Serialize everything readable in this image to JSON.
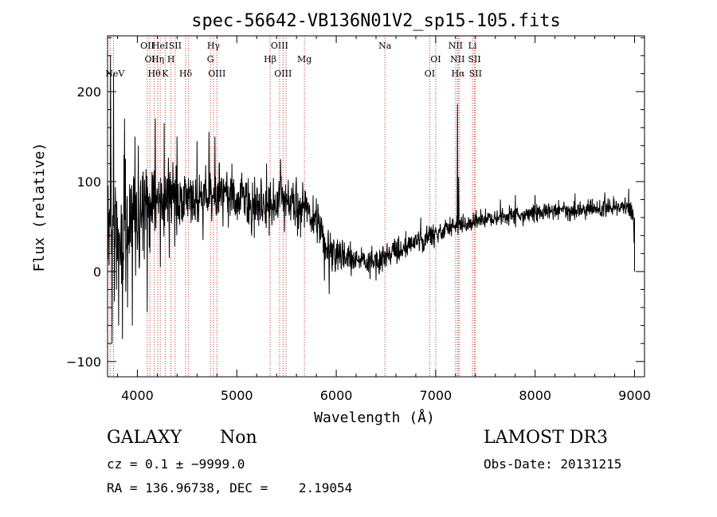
{
  "chart_data": {
    "type": "line",
    "title": "spec-56642-VB136N01V2_sp15-105.fits",
    "xlabel": "Wavelength (Å)",
    "ylabel": "Flux (relative)",
    "xlim": [
      3700,
      9100
    ],
    "ylim": [
      -117,
      262
    ],
    "xticks": [
      {
        "v": 4000,
        "label": "4000"
      },
      {
        "v": 5000,
        "label": "5000"
      },
      {
        "v": 6000,
        "label": "6000"
      },
      {
        "v": 7000,
        "label": "7000"
      },
      {
        "v": 8000,
        "label": "8000"
      },
      {
        "v": 9000,
        "label": "9000"
      }
    ],
    "yticks": [
      {
        "v": -100,
        "label": "−100"
      },
      {
        "v": 0,
        "label": "0"
      },
      {
        "v": 100,
        "label": "100"
      },
      {
        "v": 200,
        "label": "200"
      }
    ],
    "grid": false,
    "line_color": "#000000",
    "marker_color": "#c0392b",
    "spectrum_profile": [
      [
        3700,
        60
      ],
      [
        3760,
        55
      ],
      [
        3850,
        40
      ],
      [
        3950,
        55
      ],
      [
        4100,
        70
      ],
      [
        4300,
        80
      ],
      [
        4500,
        85
      ],
      [
        4700,
        90
      ],
      [
        4900,
        85
      ],
      [
        5100,
        75
      ],
      [
        5300,
        70
      ],
      [
        5500,
        80
      ],
      [
        5700,
        65
      ],
      [
        5800,
        55
      ],
      [
        5900,
        30
      ],
      [
        6000,
        20
      ],
      [
        6150,
        15
      ],
      [
        6300,
        10
      ],
      [
        6450,
        15
      ],
      [
        6600,
        20
      ],
      [
        6800,
        35
      ],
      [
        7000,
        42
      ],
      [
        7150,
        50
      ],
      [
        7400,
        55
      ],
      [
        7700,
        62
      ],
      [
        8000,
        65
      ],
      [
        8300,
        68
      ],
      [
        8600,
        70
      ],
      [
        8900,
        72
      ],
      [
        8990,
        65
      ],
      [
        9000,
        0
      ]
    ],
    "spectrum_spikes": [
      [
        3730,
        240
      ],
      [
        3745,
        -80
      ],
      [
        3760,
        220
      ],
      [
        3790,
        -20
      ],
      [
        3810,
        -60
      ],
      [
        3850,
        -75
      ],
      [
        3870,
        170
      ],
      [
        3900,
        -40
      ],
      [
        3950,
        -60
      ],
      [
        3975,
        150
      ],
      [
        4010,
        140
      ],
      [
        4035,
        60
      ],
      [
        4100,
        -45
      ],
      [
        4180,
        170
      ],
      [
        4230,
        5
      ],
      [
        4270,
        165
      ],
      [
        4320,
        15
      ],
      [
        4400,
        150
      ],
      [
        4600,
        145
      ],
      [
        4660,
        35
      ],
      [
        4720,
        155
      ],
      [
        4780,
        150
      ],
      [
        4860,
        50
      ],
      [
        4950,
        120
      ],
      [
        5050,
        110
      ],
      [
        5150,
        40
      ],
      [
        5300,
        120
      ],
      [
        5440,
        125
      ],
      [
        5600,
        105
      ],
      [
        5850,
        60
      ],
      [
        5880,
        -10
      ],
      [
        5930,
        -25
      ],
      [
        6150,
        -5
      ],
      [
        6400,
        -10
      ],
      [
        6700,
        45
      ],
      [
        6850,
        60
      ],
      [
        7218,
        186
      ],
      [
        7230,
        105
      ],
      [
        7500,
        70
      ],
      [
        7650,
        80
      ],
      [
        7800,
        85
      ],
      [
        8000,
        85
      ],
      [
        8400,
        87
      ],
      [
        8700,
        88
      ],
      [
        8940,
        92
      ]
    ],
    "lines": [
      {
        "x": 3726,
        "label": "NeV",
        "row": 2,
        "ha": "left"
      },
      {
        "x": 3760,
        "label": "",
        "row": 0,
        "ha": "center"
      },
      {
        "x": 4100,
        "label": "OII",
        "row": 0,
        "ha": "center"
      },
      {
        "x": 4126,
        "label": "OI",
        "row": 1,
        "ha": "center"
      },
      {
        "x": 4170,
        "label": "Hθ",
        "row": 2,
        "ha": "center"
      },
      {
        "x": 4205,
        "label": "Hη",
        "row": 1,
        "ha": "center"
      },
      {
        "x": 4230,
        "label": "HeI",
        "row": 0,
        "ha": "center"
      },
      {
        "x": 4280,
        "label": "K",
        "row": 2,
        "ha": "center"
      },
      {
        "x": 4338,
        "label": "H",
        "row": 1,
        "ha": "center"
      },
      {
        "x": 4380,
        "label": "SII",
        "row": 0,
        "ha": "center"
      },
      {
        "x": 4485,
        "label": "Hδ",
        "row": 2,
        "ha": "center"
      },
      {
        "x": 4515,
        "label": "",
        "row": 0,
        "ha": "center"
      },
      {
        "x": 4735,
        "label": "G",
        "row": 1,
        "ha": "center"
      },
      {
        "x": 4765,
        "label": "Hγ",
        "row": 0,
        "ha": "center"
      },
      {
        "x": 4800,
        "label": "OIII",
        "row": 2,
        "ha": "center"
      },
      {
        "x": 5335,
        "label": "Hβ",
        "row": 1,
        "ha": "center"
      },
      {
        "x": 5430,
        "label": "OIII",
        "row": 0,
        "ha": "center"
      },
      {
        "x": 5465,
        "label": "OIII",
        "row": 2,
        "ha": "center"
      },
      {
        "x": 5495,
        "label": "",
        "row": 0,
        "ha": "center"
      },
      {
        "x": 5680,
        "label": "Mg",
        "row": 1,
        "ha": "center"
      },
      {
        "x": 6490,
        "label": "Na",
        "row": 0,
        "ha": "center"
      },
      {
        "x": 6940,
        "label": "OI",
        "row": 2,
        "ha": "center"
      },
      {
        "x": 7000,
        "label": "OI",
        "row": 1,
        "ha": "center"
      },
      {
        "x": 7200,
        "label": "NII",
        "row": 0,
        "ha": "center"
      },
      {
        "x": 7220,
        "label": "NII",
        "row": 1,
        "ha": "center"
      },
      {
        "x": 7225,
        "label": "Hα",
        "row": 2,
        "ha": "center"
      },
      {
        "x": 7240,
        "label": "",
        "row": 0,
        "ha": "center"
      },
      {
        "x": 7370,
        "label": "Li",
        "row": 0,
        "ha": "center"
      },
      {
        "x": 7390,
        "label": "SII",
        "row": 1,
        "ha": "center"
      },
      {
        "x": 7400,
        "label": "SII",
        "row": 2,
        "ha": "center"
      }
    ]
  },
  "footer": {
    "object_class": "GALAXY",
    "subclass": "Non",
    "survey": "LAMOST DR3",
    "cz": "cz = 0.1 ± −9999.0",
    "obs_date": "Obs-Date: 20131215",
    "radec": "RA = 136.96738, DEC =    2.19054"
  }
}
